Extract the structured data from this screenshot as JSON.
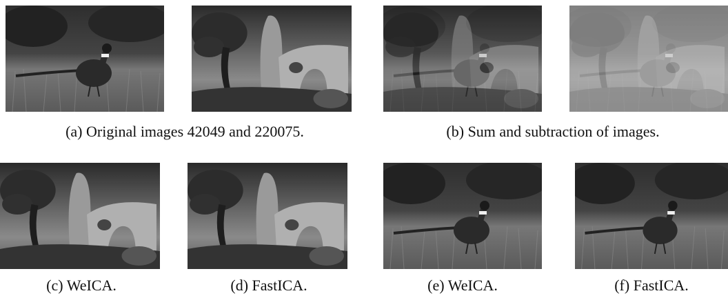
{
  "figure": {
    "subfigures": [
      {
        "label": "(a)",
        "caption": "Original images 42049 and 220075."
      },
      {
        "label": "(b)",
        "caption": "Sum and subtraction of images."
      },
      {
        "label": "(c)",
        "caption": "WeICA."
      },
      {
        "label": "(d)",
        "caption": "FastICA."
      },
      {
        "label": "(e)",
        "caption": "WeICA."
      },
      {
        "label": "(f)",
        "caption": "FastICA."
      }
    ]
  }
}
